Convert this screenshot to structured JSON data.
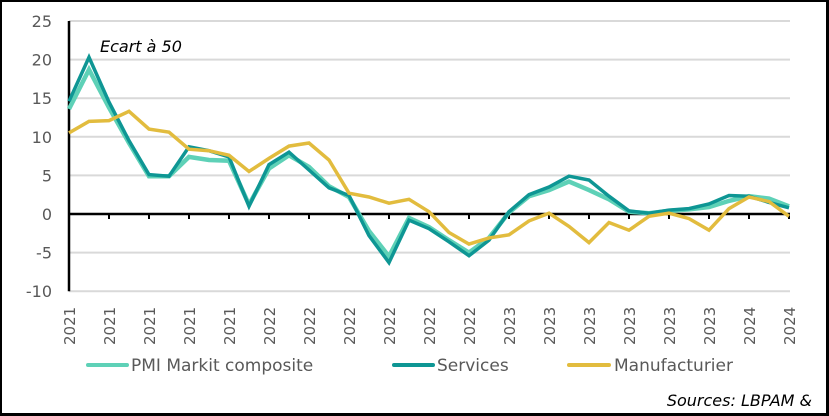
{
  "chart_data": {
    "type": "line",
    "title": "",
    "annotation": "Ecart à 50",
    "xlabel": "",
    "ylabel": "",
    "ylim": [
      -10,
      25
    ],
    "yticks": [
      25,
      20,
      15,
      10,
      5,
      0,
      -5,
      -10
    ],
    "grid": true,
    "x": [
      "2021",
      "2021",
      "2021",
      "2021",
      "2021",
      "2021",
      "2021",
      "2021",
      "2021",
      "2021",
      "2022",
      "2022",
      "2022",
      "2022",
      "2022",
      "2022",
      "2022",
      "2022",
      "2022",
      "2022",
      "2022",
      "2022",
      "2023",
      "2023",
      "2023",
      "2023",
      "2023",
      "2023",
      "2023",
      "2023",
      "2023",
      "2023",
      "2023",
      "2023",
      "2024",
      "2024",
      "2024"
    ],
    "xtick_labels": [
      "2021",
      "2021",
      "2021",
      "2021",
      "2021",
      "2022",
      "2022",
      "2022",
      "2022",
      "2022",
      "2022",
      "2023",
      "2023",
      "2023",
      "2023",
      "2023",
      "2023",
      "2024",
      "2024"
    ],
    "series": [
      {
        "name": "PMI Markit composite",
        "color": "#5ED1B7",
        "values": [
          13.6,
          18.7,
          13.8,
          9.2,
          4.9,
          4.9,
          7.4,
          7.0,
          6.9,
          1.2,
          5.9,
          7.6,
          6.1,
          3.6,
          2.2,
          -2.2,
          -5.5,
          -0.5,
          -1.7,
          -3.4,
          -5.0,
          -3.1,
          0.2,
          2.3,
          3.1,
          4.2,
          3.1,
          1.9,
          0.3,
          0.1,
          0.4,
          0.6,
          0.9,
          1.7,
          2.3,
          2.0,
          1.0
        ]
      },
      {
        "name": "Services",
        "color": "#0E9694",
        "values": [
          14.6,
          20.3,
          14.5,
          9.5,
          5.1,
          4.9,
          8.7,
          8.2,
          7.4,
          1.0,
          6.4,
          8.0,
          5.7,
          3.4,
          2.4,
          -2.8,
          -6.3,
          -0.8,
          -1.9,
          -3.6,
          -5.4,
          -3.4,
          0.3,
          2.5,
          3.5,
          4.9,
          4.4,
          2.3,
          0.4,
          0.1,
          0.5,
          0.7,
          1.3,
          2.4,
          2.3,
          1.5,
          0.8
        ]
      },
      {
        "name": "Manufacturier",
        "color": "#E2BC3E",
        "values": [
          10.5,
          12.0,
          12.1,
          13.3,
          11.0,
          10.6,
          8.4,
          8.2,
          7.6,
          5.5,
          7.2,
          8.8,
          9.2,
          7.0,
          2.7,
          2.2,
          1.4,
          1.9,
          0.3,
          -2.4,
          -3.9,
          -3.1,
          -2.7,
          -0.9,
          0.1,
          -1.6,
          -3.7,
          -1.1,
          -2.1,
          -0.3,
          0.1,
          -0.6,
          -2.1,
          0.7,
          2.2,
          1.6,
          -0.3
        ]
      }
    ],
    "legend": {
      "position": "bottom",
      "entries": [
        "PMI Markit composite",
        "Services",
        "Manufacturier"
      ]
    },
    "source": "Sources: LBPAM &"
  },
  "colors": {
    "axis": "#000000",
    "grid": "#D9D9D9",
    "tick_text": "#595959"
  }
}
